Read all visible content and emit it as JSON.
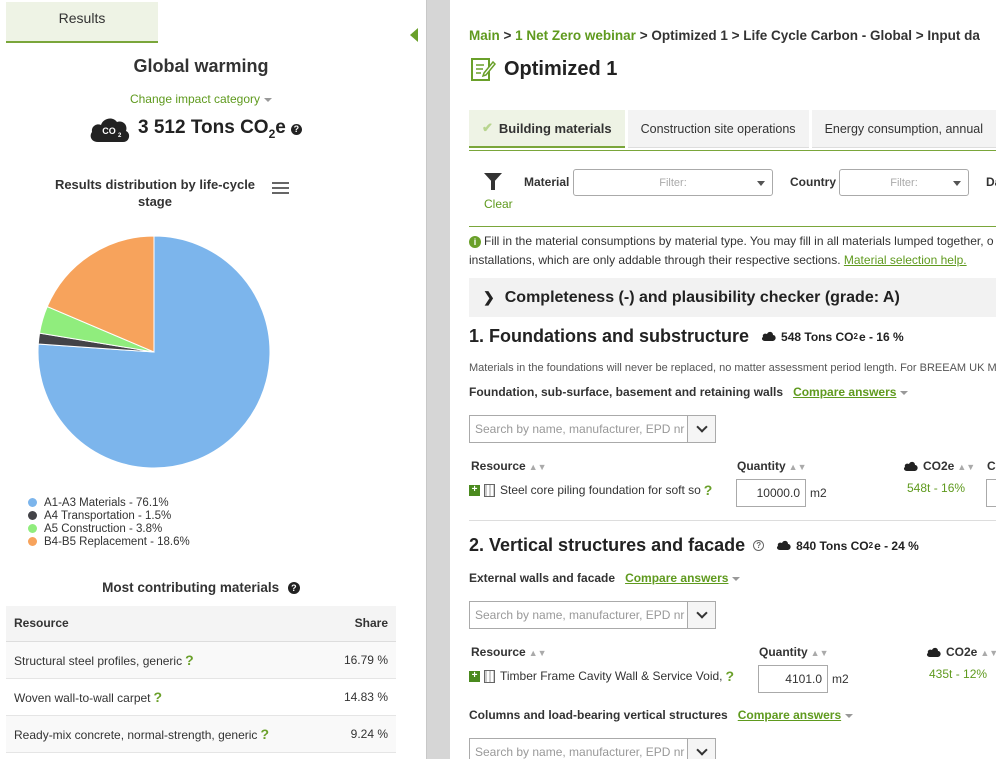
{
  "left_panel": {
    "results_tab": "Results",
    "impact_title": "Global warming",
    "change_category": "Change impact category",
    "total_value": "3 512 Tons CO",
    "total_sub": "2",
    "total_suffix": "e",
    "distribution_title": "Results distribution by life-cycle stage",
    "legend": [
      {
        "label": "A1-A3 Materials - 76.1%",
        "color": "#7cb5ec"
      },
      {
        "label": "A4 Transportation - 1.5%",
        "color": "#434348"
      },
      {
        "label": "A5 Construction - 3.8%",
        "color": "#90ed7d"
      },
      {
        "label": "B4-B5 Replacement - 18.6%",
        "color": "#f7a35c"
      }
    ],
    "most_contributing_title": "Most contributing materials",
    "table": {
      "headers": [
        "Resource",
        "Share"
      ],
      "rows": [
        {
          "resource": "Structural steel profiles, generic",
          "share": "16.79 %"
        },
        {
          "resource": "Woven wall-to-wall carpet",
          "share": "14.83 %"
        },
        {
          "resource": "Ready-mix concrete, normal-strength, generic",
          "share": "9.24 %"
        }
      ]
    }
  },
  "chart_data": {
    "type": "pie",
    "title": "Results distribution by life-cycle stage",
    "categories": [
      "A1-A3 Materials",
      "A4 Transportation",
      "A5 Construction",
      "B4-B5 Replacement"
    ],
    "values": [
      76.1,
      1.5,
      3.8,
      18.6
    ],
    "colors": [
      "#7cb5ec",
      "#434348",
      "#90ed7d",
      "#f7a35c"
    ],
    "legend_position": "bottom-left"
  },
  "right_panel": {
    "breadcrumb": {
      "main": "Main",
      "sep": " > ",
      "project": "1 Net Zero webinar",
      "rest": " > Optimized 1 > Life Cycle Carbon - Global > Input da"
    },
    "page_title": "Optimized 1",
    "tabs": [
      "Building materials",
      "Construction site operations",
      "Energy consumption, annual"
    ],
    "filters": {
      "clear": "Clear",
      "material_label": "Material",
      "material_placeholder": "Filter:",
      "country_label": "Country",
      "country_placeholder": "Filter:",
      "extra_label": "Da"
    },
    "info": {
      "line1": "Fill in the material consumptions by material type. You may fill in all materials lumped together, o",
      "line2": "installations, which are only addable through their respective sections. ",
      "link": "Material selection help."
    },
    "checker": "Completeness (-) and plausibility checker (grade: A)",
    "sections": [
      {
        "title": "1. Foundations and substructure",
        "co2": "548 Tons CO",
        "co2_sub": "2",
        "co2_suffix": "e - 16 %",
        "desc": "Materials in the foundations will never be replaced, no matter assessment period length. For BREEAM UK M",
        "subhead": "Foundation, sub-surface, basement and retaining walls",
        "compare": "Compare answers",
        "search_placeholder": "Search by name, manufacturer, EPD nr",
        "col_resource": "Resource",
        "col_quantity": "Quantity",
        "col_co2": "CO2e",
        "col_extra": "C",
        "row": {
          "name": "Steel core piling foundation for soft so",
          "qty": "10000.0",
          "unit": "m2",
          "co2": "548t - 16%"
        }
      },
      {
        "title": "2. Vertical structures and facade",
        "co2": "840 Tons CO",
        "co2_sub": "2",
        "co2_suffix": "e - 24 %",
        "subhead": "External walls and facade",
        "compare": "Compare answers",
        "search_placeholder": "Search by name, manufacturer, EPD nr",
        "col_resource": "Resource",
        "col_quantity": "Quantity",
        "col_co2": "CO2e",
        "row": {
          "name": "Timber Frame Cavity Wall & Service Void,",
          "qty": "4101.0",
          "unit": "m2",
          "co2": "435t - 12%"
        },
        "subhead2": "Columns and load-bearing vertical structures",
        "compare2": "Compare answers",
        "search_placeholder2": "Search by name, manufacturer, EPD nr"
      }
    ]
  }
}
